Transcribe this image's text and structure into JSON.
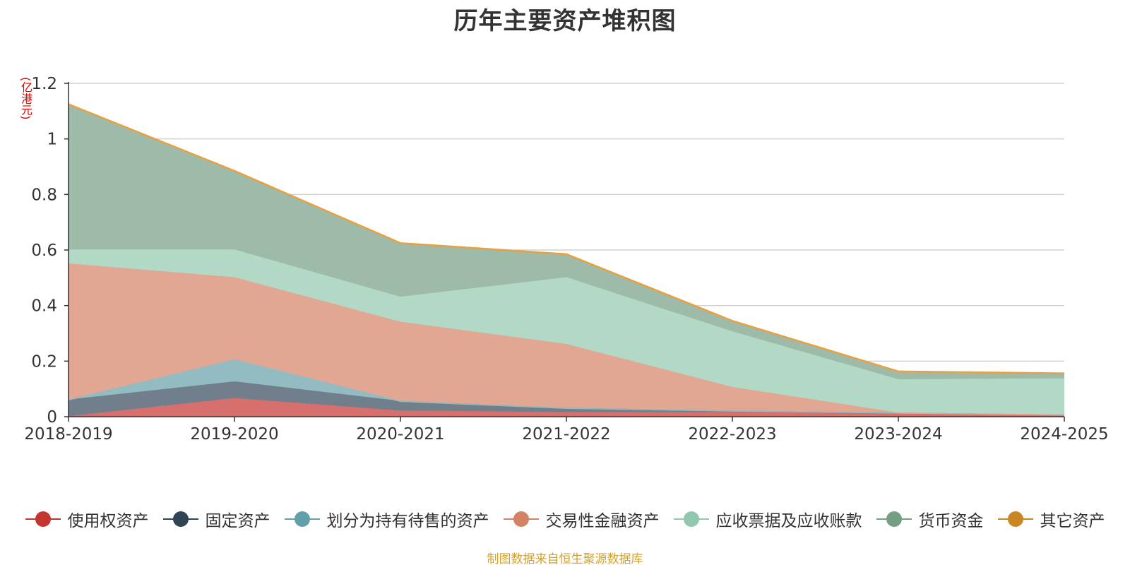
{
  "title": "历年主要资产堆积图",
  "source_note": "制图数据来自恒生聚源数据库",
  "chart_data": {
    "type": "area",
    "stacked": true,
    "unit": "(亿港元)",
    "categories": [
      "2018-2019",
      "2019-2020",
      "2020-2021",
      "2021-2022",
      "2022-2023",
      "2023-2024",
      "2024-2025"
    ],
    "ylim": [
      0,
      1.2
    ],
    "yticks": [
      0,
      0.2,
      0.4,
      0.6,
      0.8,
      1,
      1.2
    ],
    "ytick_labels": [
      "0",
      "0.2",
      "0.4",
      "0.6",
      "0.8",
      "1",
      "1.2"
    ],
    "grid": true,
    "legend_position": "bottom",
    "series": [
      {
        "name": "使用权资产",
        "color": "#c23531",
        "fill": "#d7706d",
        "values": [
          0.0,
          0.065,
          0.02,
          0.015,
          0.015,
          0.01,
          0.005
        ]
      },
      {
        "name": "固定资产",
        "color": "#2f4554",
        "fill": "#707f8b",
        "values": [
          0.06,
          0.06,
          0.035,
          0.015,
          0.005,
          0.003,
          0.001
        ]
      },
      {
        "name": "划分为持有待售的资产",
        "color": "#61a0a8",
        "fill": "#92bcc1",
        "values": [
          0.0,
          0.08,
          0.0,
          0.0,
          0.0,
          0.0,
          0.0
        ]
      },
      {
        "name": "交易性金融资产",
        "color": "#d48265",
        "fill": "#e1a793",
        "values": [
          0.49,
          0.295,
          0.285,
          0.23,
          0.085,
          0.0,
          0.0
        ]
      },
      {
        "name": "应收票据及应收账款",
        "color": "#91c7ae",
        "fill": "#b2d8c6",
        "values": [
          0.05,
          0.1,
          0.09,
          0.24,
          0.2,
          0.12,
          0.13
        ]
      },
      {
        "name": "货币资金",
        "color": "#749f83",
        "fill": "#9dbba8",
        "values": [
          0.52,
          0.28,
          0.19,
          0.08,
          0.035,
          0.025,
          0.015
        ]
      },
      {
        "name": "其它资产",
        "color": "#ca8622",
        "fill": "#dfaa64",
        "values": [
          0.005,
          0.005,
          0.005,
          0.005,
          0.005,
          0.005,
          0.005
        ]
      }
    ]
  }
}
